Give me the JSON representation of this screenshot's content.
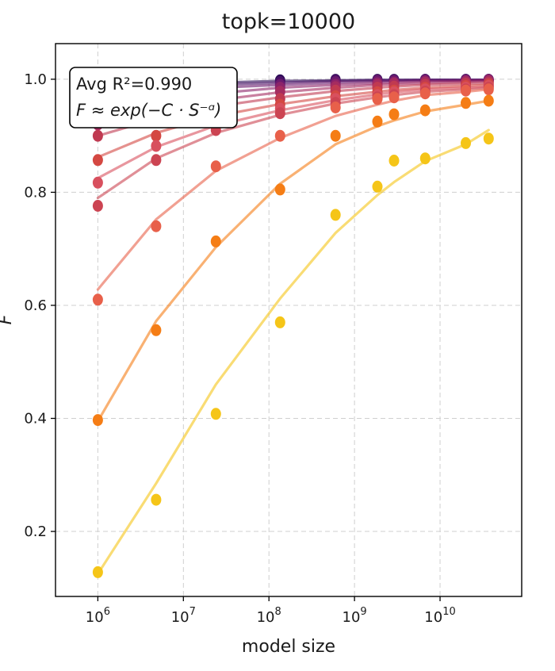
{
  "chart_data": {
    "type": "scatter",
    "title": "topk=10000",
    "xlabel": "model size",
    "ylabel": "F",
    "xscale": "log",
    "xlim": [
      320000.0,
      90000000000.0
    ],
    "ylim": [
      0.085,
      1.063
    ],
    "grid": true,
    "xticks": [
      1000000.0,
      10000000.0,
      100000000.0,
      1000000000.0,
      10000000000.0
    ],
    "xticklabels": [
      {
        "base": "10",
        "exp": "6"
      },
      {
        "base": "10",
        "exp": "7"
      },
      {
        "base": "10",
        "exp": "8"
      },
      {
        "base": "10",
        "exp": "9"
      },
      {
        "base": "10",
        "exp": "10"
      }
    ],
    "yticks": [
      0.2,
      0.4,
      0.6,
      0.8,
      1.0
    ],
    "yticklabels": [
      "0.2",
      "0.4",
      "0.6",
      "0.8",
      "1.0"
    ],
    "annotation": {
      "line1": "Avg R²=0.990",
      "line2": "F ≈ exp(−C · S⁻ᵅ)",
      "placement": "top-left"
    },
    "x": [
      1000000.0,
      4800000.0,
      24000000.0,
      135000000.0,
      600000000.0,
      1850000000.0,
      2900000000.0,
      6700000000.0,
      20000000000.0,
      37000000000.0
    ],
    "series": [
      {
        "color": "#2d0c57",
        "points": [
          0.985,
          0.99,
          0.995,
          0.998,
          0.999,
          0.999,
          0.999,
          0.999,
          0.999,
          0.999
        ],
        "fit": [
          0.985,
          0.99,
          0.994,
          0.997,
          0.998,
          0.999,
          0.999,
          0.999,
          0.999,
          0.999
        ]
      },
      {
        "color": "#4a1166",
        "points": [
          0.975,
          0.985,
          0.99,
          0.995,
          0.998,
          0.998,
          0.998,
          0.999,
          0.999,
          0.999
        ],
        "fit": [
          0.975,
          0.985,
          0.99,
          0.994,
          0.997,
          0.998,
          0.998,
          0.999,
          0.999,
          0.999
        ]
      },
      {
        "color": "#6b1a6e",
        "points": [
          0.96,
          0.975,
          0.985,
          0.99,
          0.995,
          0.997,
          0.997,
          0.998,
          0.998,
          0.999
        ],
        "fit": [
          0.96,
          0.975,
          0.985,
          0.99,
          0.994,
          0.996,
          0.997,
          0.998,
          0.998,
          0.999
        ]
      },
      {
        "color": "#8c2369",
        "points": [
          0.94,
          0.96,
          0.975,
          0.985,
          0.99,
          0.993,
          0.994,
          0.996,
          0.997,
          0.998
        ],
        "fit": [
          0.94,
          0.962,
          0.975,
          0.985,
          0.99,
          0.993,
          0.994,
          0.996,
          0.997,
          0.998
        ]
      },
      {
        "color": "#a52c60",
        "points": [
          0.92,
          0.945,
          0.965,
          0.978,
          0.986,
          0.99,
          0.992,
          0.994,
          0.995,
          0.996
        ],
        "fit": [
          0.92,
          0.945,
          0.963,
          0.977,
          0.985,
          0.99,
          0.991,
          0.993,
          0.995,
          0.996
        ]
      },
      {
        "color": "#c03a51",
        "points": [
          0.9,
          0.925,
          0.95,
          0.965,
          0.98,
          0.985,
          0.987,
          0.99,
          0.992,
          0.993
        ],
        "fit": [
          0.9,
          0.93,
          0.952,
          0.968,
          0.979,
          0.985,
          0.987,
          0.99,
          0.992,
          0.993
        ]
      },
      {
        "color": "#d44842",
        "points": [
          0.857,
          0.9,
          0.935,
          0.955,
          0.97,
          0.977,
          0.98,
          0.985,
          0.988,
          0.99
        ],
        "fit": [
          0.862,
          0.905,
          0.935,
          0.956,
          0.97,
          0.978,
          0.981,
          0.985,
          0.988,
          0.99
        ]
      },
      {
        "color": "#d8505e",
        "points": [
          0.817,
          0.882,
          0.92,
          0.948,
          0.965,
          0.972,
          0.977,
          0.982,
          0.985,
          0.988
        ],
        "fit": [
          0.825,
          0.88,
          0.918,
          0.945,
          0.963,
          0.973,
          0.977,
          0.982,
          0.985,
          0.987
        ]
      },
      {
        "color": "#cc4452",
        "points": [
          0.776,
          0.857,
          0.91,
          0.94,
          0.958,
          0.968,
          0.972,
          0.978,
          0.982,
          0.985
        ],
        "fit": [
          0.79,
          0.86,
          0.905,
          0.937,
          0.957,
          0.968,
          0.972,
          0.978,
          0.982,
          0.985
        ]
      },
      {
        "color": "#e8604a",
        "points": [
          0.61,
          0.74,
          0.846,
          0.9,
          0.95,
          0.965,
          0.968,
          0.975,
          0.98,
          0.982
        ],
        "fit": [
          0.628,
          0.752,
          0.838,
          0.896,
          0.935,
          0.955,
          0.962,
          0.972,
          0.978,
          0.982
        ]
      },
      {
        "color": "#f57d15",
        "points": [
          0.397,
          0.556,
          0.713,
          0.805,
          0.9,
          0.925,
          0.938,
          0.945,
          0.958,
          0.962
        ],
        "fit": [
          0.395,
          0.572,
          0.703,
          0.815,
          0.885,
          0.917,
          0.927,
          0.943,
          0.955,
          0.962
        ]
      },
      {
        "color": "#f5c518",
        "points": [
          0.128,
          0.256,
          0.408,
          0.57,
          0.76,
          0.81,
          0.856,
          0.86,
          0.887,
          0.895
        ],
        "fit": [
          0.125,
          0.285,
          0.46,
          0.612,
          0.728,
          0.795,
          0.818,
          0.855,
          0.885,
          0.91
        ]
      }
    ]
  }
}
